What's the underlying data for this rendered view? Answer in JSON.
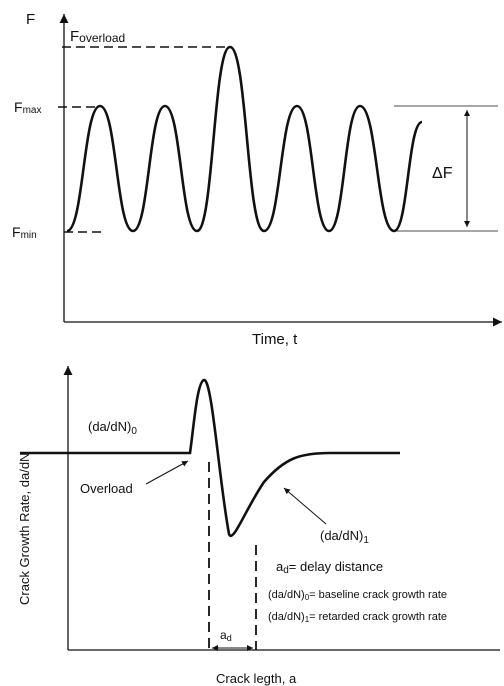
{
  "top_diagram": {
    "y_axis_label": "F",
    "x_axis_label": "Time, t",
    "f_overload_main": "F",
    "f_overload_sub": "overload",
    "f_max_main": "F",
    "f_max_sub": "max",
    "f_min_main": "F",
    "f_min_sub": "min",
    "delta_f_label": "ΔF"
  },
  "bottom_diagram": {
    "y_axis_label": "Crack Growth Rate, da/dN",
    "x_axis_label": "Crack legth, a",
    "baseline_rate_main": "(da/dN)",
    "baseline_rate_sub": "0",
    "overload_label": "Overload",
    "retarded_rate_main": "(da/dN)",
    "retarded_rate_sub": "1",
    "ad_main": "a",
    "ad_sub": "d",
    "legend": {
      "ad_main": "a",
      "ad_sub": "d",
      "ad_text": "= delay distance",
      "baseline_main": "(da/dN)",
      "baseline_sub": "0",
      "baseline_text": "= baseline crack growth rate",
      "retarded_main": "(da/dN)",
      "retarded_sub": "1",
      "retarded_text": "= retarded crack growth rate"
    }
  }
}
